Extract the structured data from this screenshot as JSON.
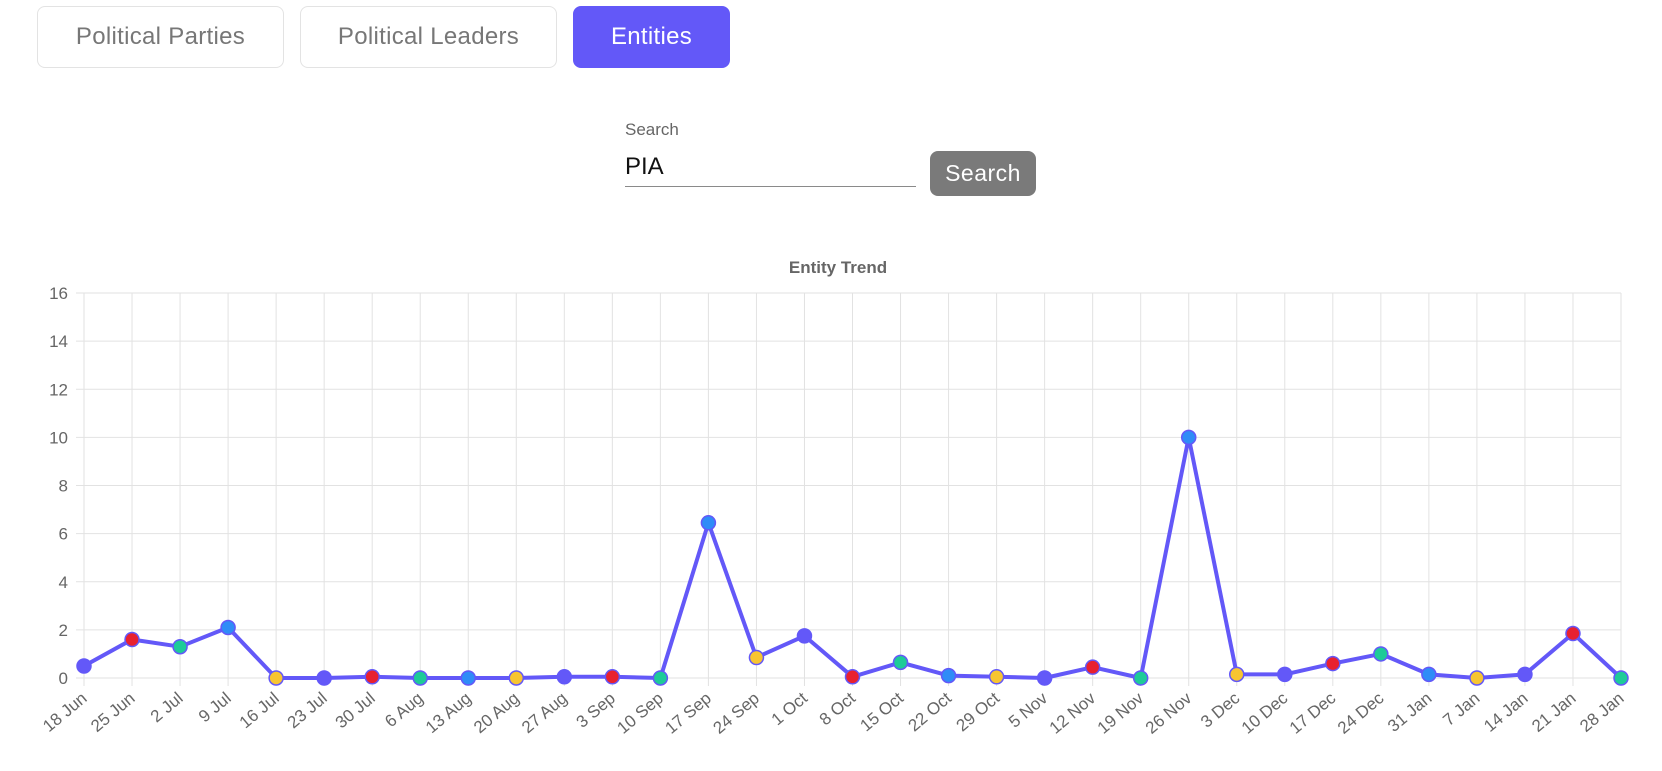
{
  "tabs": [
    {
      "label": "Political Parties",
      "active": false
    },
    {
      "label": "Political Leaders",
      "active": false
    },
    {
      "label": "Entities",
      "active": true
    }
  ],
  "search": {
    "label": "Search",
    "value": "PIA",
    "button_label": "Search"
  },
  "colors": {
    "accent": "#6358f8",
    "line": "#6358f8",
    "button": "#7a7a7a"
  },
  "chart_data": {
    "type": "line",
    "title": "Entity Trend",
    "xlabel": "",
    "ylabel": "",
    "ylim": [
      0,
      16
    ],
    "yticks": [
      0,
      2,
      4,
      6,
      8,
      10,
      12,
      14,
      16
    ],
    "grid": true,
    "categories": [
      "18 Jun",
      "25 Jun",
      "2 Jul",
      "9 Jul",
      "16 Jul",
      "23 Jul",
      "30 Jul",
      "6 Aug",
      "13 Aug",
      "20 Aug",
      "27 Aug",
      "3 Sep",
      "10 Sep",
      "17 Sep",
      "24 Sep",
      "1 Oct",
      "8 Oct",
      "15 Oct",
      "22 Oct",
      "29 Oct",
      "5 Nov",
      "12 Nov",
      "19 Nov",
      "26 Nov",
      "3 Dec",
      "10 Dec",
      "17 Dec",
      "24 Dec",
      "31 Jan",
      "7 Jan",
      "14 Jan",
      "21 Jan",
      "28 Jan"
    ],
    "series": [
      {
        "values": [
          0.5,
          1.6,
          1.3,
          2.1,
          0.0,
          0.0,
          0.05,
          0.0,
          0.0,
          0.0,
          0.05,
          0.05,
          0.0,
          6.45,
          0.85,
          1.75,
          0.05,
          0.65,
          0.1,
          0.05,
          0.0,
          0.45,
          0.0,
          10.0,
          0.15,
          0.15,
          0.6,
          1.0,
          0.15,
          0.0,
          0.15,
          1.85,
          0.0
        ],
        "color": "#6358f8"
      }
    ],
    "point_colors": [
      "#6358f8",
      "#e8212f",
      "#1ecb98",
      "#2f8cf7",
      "#f7c531"
    ]
  }
}
